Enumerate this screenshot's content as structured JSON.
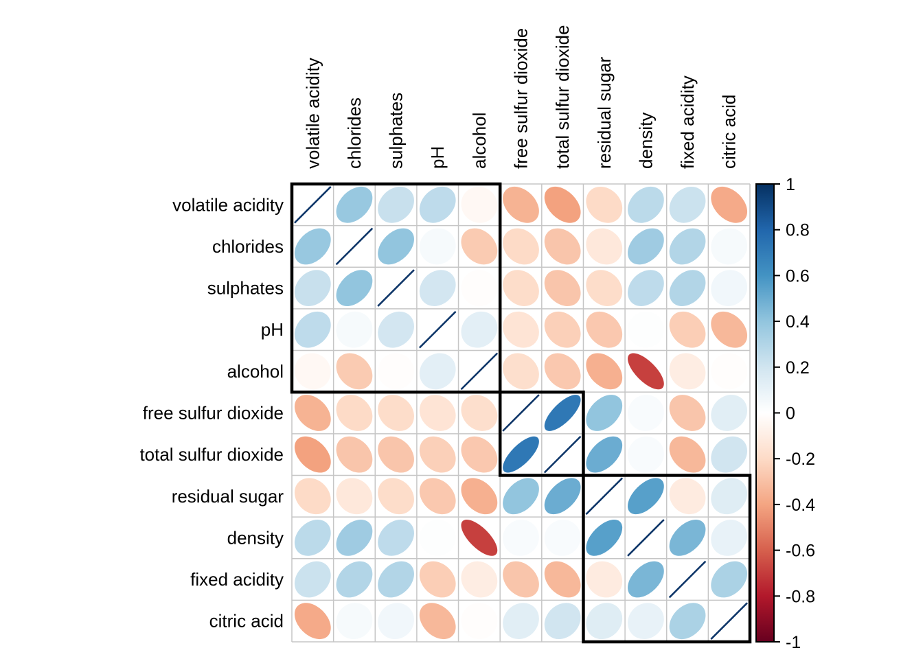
{
  "figure": {
    "background": "#FFFFFF"
  },
  "chart_data": {
    "type": "heatmap",
    "subtype": "correlation-ellipse-matrix",
    "title": "",
    "variables": [
      "volatile acidity",
      "chlorides",
      "sulphates",
      "pH",
      "alcohol",
      "free sulfur dioxide",
      "total sulfur dioxide",
      "residual sugar",
      "density",
      "fixed acidity",
      "citric acid"
    ],
    "matrix": [
      [
        1.0,
        0.38,
        0.23,
        0.26,
        -0.04,
        -0.35,
        -0.41,
        -0.2,
        0.27,
        0.22,
        -0.38
      ],
      [
        0.38,
        1.0,
        0.4,
        0.04,
        -0.26,
        -0.2,
        -0.28,
        -0.13,
        0.36,
        0.3,
        0.04
      ],
      [
        0.23,
        0.4,
        1.0,
        0.19,
        -0.01,
        -0.19,
        -0.28,
        -0.19,
        0.26,
        0.3,
        0.06
      ],
      [
        0.26,
        0.04,
        0.19,
        1.0,
        0.12,
        -0.15,
        -0.24,
        -0.27,
        0.01,
        -0.25,
        -0.33
      ],
      [
        -0.04,
        -0.26,
        -0.01,
        0.12,
        1.0,
        -0.18,
        -0.27,
        -0.36,
        -0.69,
        -0.1,
        -0.01
      ],
      [
        -0.35,
        -0.2,
        -0.19,
        -0.15,
        -0.18,
        1.0,
        0.72,
        0.4,
        0.03,
        -0.28,
        0.13
      ],
      [
        -0.41,
        -0.28,
        -0.28,
        -0.24,
        -0.27,
        0.72,
        1.0,
        0.5,
        0.03,
        -0.33,
        0.2
      ],
      [
        -0.2,
        -0.13,
        -0.19,
        -0.27,
        -0.36,
        0.4,
        0.5,
        1.0,
        0.55,
        -0.11,
        0.14
      ],
      [
        0.27,
        0.36,
        0.26,
        0.01,
        -0.69,
        0.03,
        0.03,
        0.55,
        1.0,
        0.46,
        0.1
      ],
      [
        0.22,
        0.3,
        0.3,
        -0.25,
        -0.1,
        -0.28,
        -0.33,
        -0.11,
        0.46,
        1.0,
        0.32
      ],
      [
        -0.38,
        0.04,
        0.06,
        -0.33,
        -0.01,
        0.13,
        0.2,
        0.14,
        0.1,
        0.32,
        1.0
      ]
    ],
    "value_range": [
      -1,
      1
    ],
    "cluster_rects": [
      {
        "start": 0,
        "end": 4
      },
      {
        "start": 5,
        "end": 6
      },
      {
        "start": 7,
        "end": 10
      }
    ],
    "colorbar": {
      "ticks": [
        "1",
        "0.8",
        "0.6",
        "0.4",
        "0.2",
        "0",
        "-0.2",
        "-0.4",
        "-0.6",
        "-0.8",
        "-1"
      ],
      "tick_values": [
        1,
        0.8,
        0.6,
        0.4,
        0.2,
        0,
        -0.2,
        -0.4,
        -0.6,
        -0.8,
        -1
      ],
      "min": -1,
      "max": 1,
      "position": "right"
    },
    "palette_rdbu_neg_to_pos": [
      "#67001F",
      "#B2182B",
      "#D6604D",
      "#F4A582",
      "#FDDBC7",
      "#FFFFFF",
      "#D1E5F0",
      "#92C5DE",
      "#4393C3",
      "#2166AC",
      "#053061"
    ],
    "colors": {
      "grid": "#C6C6C6",
      "cluster_border": "#000000",
      "label_text": "#000000",
      "diagonal_line": "#0D3568",
      "colorbar_border": "#000000"
    },
    "layout_hints": {
      "grid_on": true,
      "diagonal": "identity-line",
      "positive_orientation": "up-right",
      "negative_orientation": "down-right",
      "legend_position": "right"
    }
  }
}
